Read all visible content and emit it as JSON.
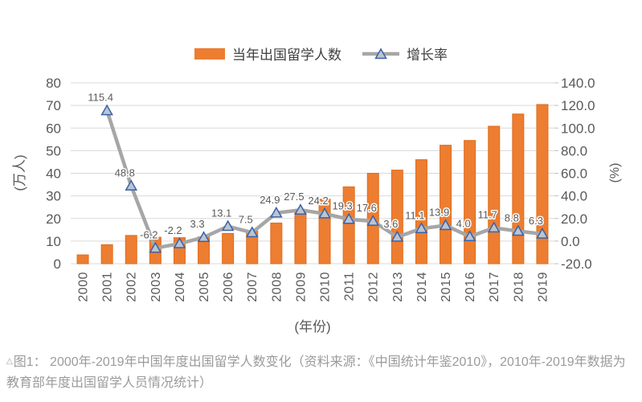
{
  "figure": {
    "caption": {
      "marker": "△",
      "text": "图1： 2000年-2019年中国年度出国留学人数变化（资料来源：《中国统计年鉴2010》，2010年-2019年数据为教育部年度出国留学人员情况统计）"
    }
  },
  "chart_data": {
    "type": "bar+line combo",
    "title": "",
    "categories": [
      "2000",
      "2001",
      "2002",
      "2003",
      "2004",
      "2005",
      "2006",
      "2007",
      "2008",
      "2009",
      "2010",
      "2011",
      "2012",
      "2013",
      "2014",
      "2015",
      "2016",
      "2017",
      "2018",
      "2019"
    ],
    "series": [
      {
        "name": "当年出国留学人数",
        "type": "bar",
        "axis": "left",
        "unit": "万人",
        "color": "#ED7D31",
        "border": "#DE6E1E",
        "values": [
          3.9,
          8.4,
          12.5,
          11.7,
          11.5,
          11.9,
          13.4,
          14.4,
          18.0,
          22.9,
          28.5,
          34.0,
          40.0,
          41.4,
          46.0,
          52.4,
          54.5,
          60.8,
          66.2,
          70.4
        ]
      },
      {
        "name": "增长率",
        "type": "line",
        "axis": "right",
        "unit": "%",
        "color": "#A6A6A6",
        "marker": {
          "shape": "triangle",
          "fill": "#BCC4CF",
          "border": "#3A62A8"
        },
        "values": [
          null,
          115.4,
          48.8,
          -6.2,
          -2.2,
          3.3,
          13.1,
          7.5,
          24.9,
          27.5,
          24.2,
          19.3,
          17.6,
          3.6,
          11.1,
          13.9,
          4.0,
          11.7,
          8.8,
          6.3
        ]
      }
    ],
    "left_axis": {
      "unit_label": "(万人)",
      "min": 0,
      "max": 80,
      "step": 10
    },
    "right_axis": {
      "unit_label": "(%)",
      "min": -20,
      "max": 140,
      "step": 20
    },
    "x_axis": {
      "label": "(年份)"
    },
    "grid": {
      "color": "#D9D9D9",
      "visible": true
    },
    "legend_position": "top",
    "text_color": "#595959"
  }
}
